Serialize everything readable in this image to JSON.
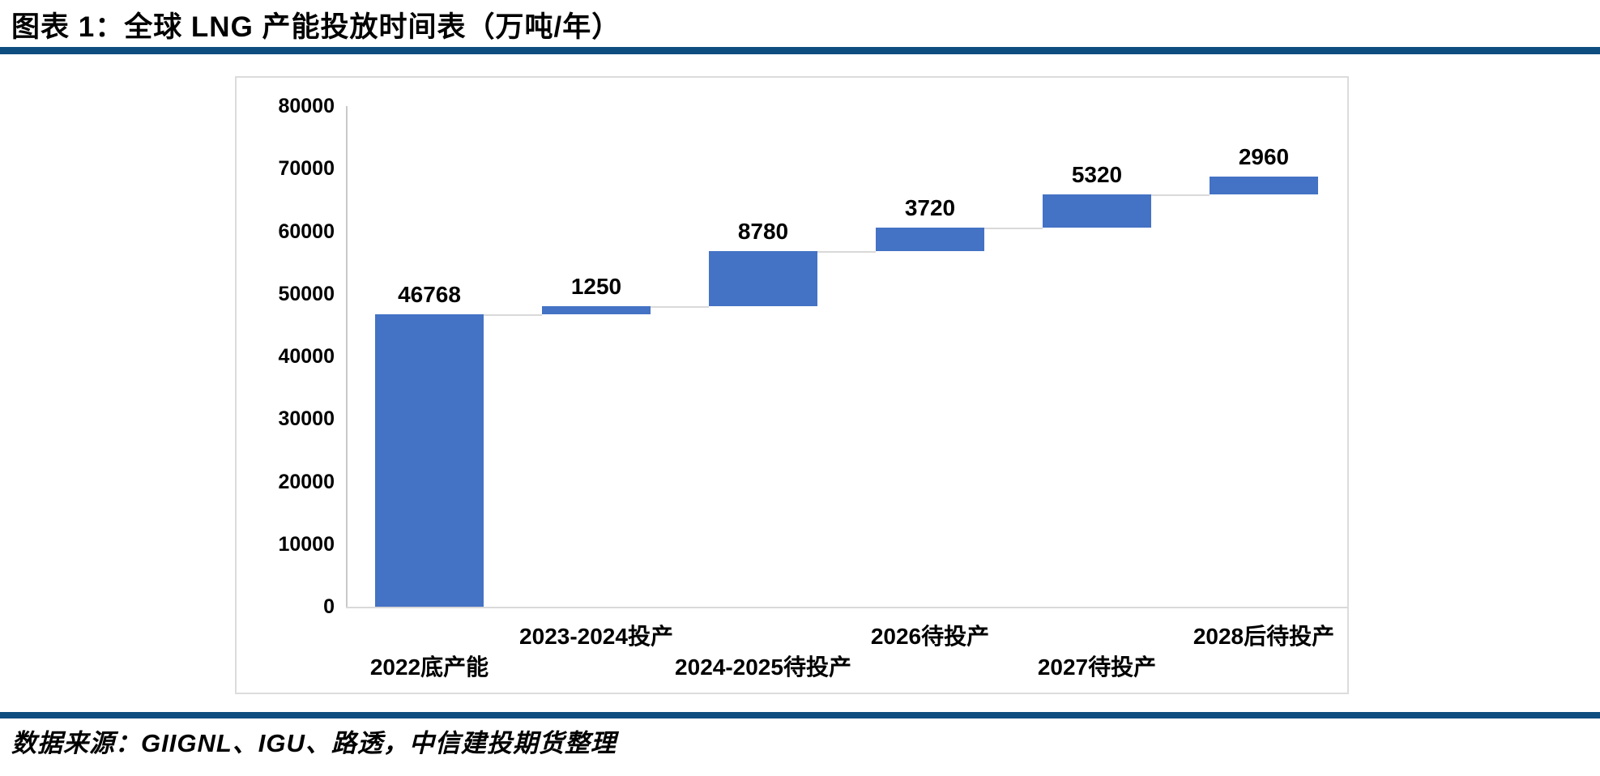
{
  "page": {
    "title": "图表 1：全球 LNG 产能投放时间表（万吨/年）",
    "source_note": "数据来源：GIIGNL、IGU、路透，中信建投期货整理"
  },
  "colors": {
    "accent_rule": "#0e4d7f",
    "bar_fill": "#4472c4",
    "connector": "#d9d9d9",
    "axis_line": "#c9c9c9",
    "chart_border": "#dcdcdc",
    "text": "#000000"
  },
  "chart_data": {
    "type": "bar",
    "subtype": "waterfall",
    "title": "全球 LNG 产能投放时间表（万吨/年）",
    "categories": [
      "2022底产能",
      "2023-2024投产",
      "2024-2025待投产",
      "2026待投产",
      "2027待投产",
      "2028后待投产"
    ],
    "values": [
      46768,
      1250,
      8780,
      3720,
      5320,
      2960
    ],
    "cumulative": [
      46768,
      48018,
      56798,
      60518,
      65838,
      68798
    ],
    "data_labels": [
      "46768",
      "1250",
      "8780",
      "3720",
      "5320",
      "2960"
    ],
    "xlabel": "",
    "ylabel": "",
    "ylim": [
      0,
      80000
    ],
    "yticks": [
      0,
      10000,
      20000,
      30000,
      40000,
      50000,
      60000,
      70000,
      80000
    ],
    "ytick_labels": [
      "0",
      "10000",
      "20000",
      "30000",
      "40000",
      "50000",
      "60000",
      "70000",
      "80000"
    ],
    "grid": false,
    "legend_position": "none",
    "x_label_stagger": "odd-indices-upper-row"
  }
}
